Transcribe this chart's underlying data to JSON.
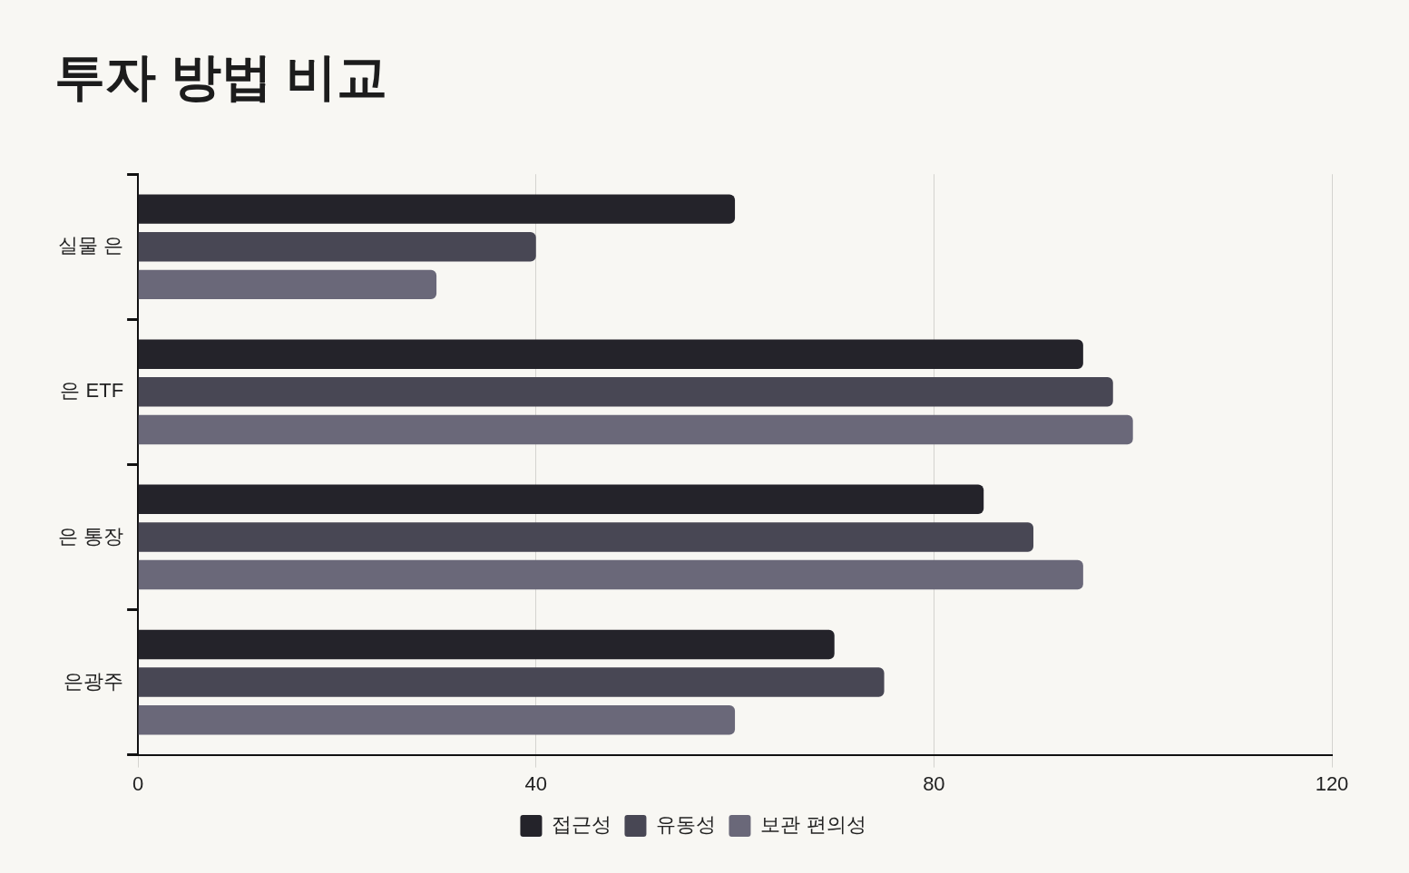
{
  "chart_data": {
    "type": "bar",
    "title": "투자 방법 비교",
    "orientation": "horizontal",
    "categories": [
      "실물 은",
      "은 ETF",
      "은 통장",
      "은광주"
    ],
    "series": [
      {
        "name": "접근성",
        "color": "#24232a",
        "values": [
          60,
          95,
          85,
          70
        ]
      },
      {
        "name": "유동성",
        "color": "#484754",
        "values": [
          40,
          98,
          90,
          75
        ]
      },
      {
        "name": "보관 편의성",
        "color": "#6a6879",
        "values": [
          30,
          100,
          95,
          60
        ]
      }
    ],
    "xlim": [
      0,
      120
    ],
    "xticks": [
      0,
      40,
      80,
      120
    ],
    "grid": "x",
    "legend": "bottom"
  }
}
